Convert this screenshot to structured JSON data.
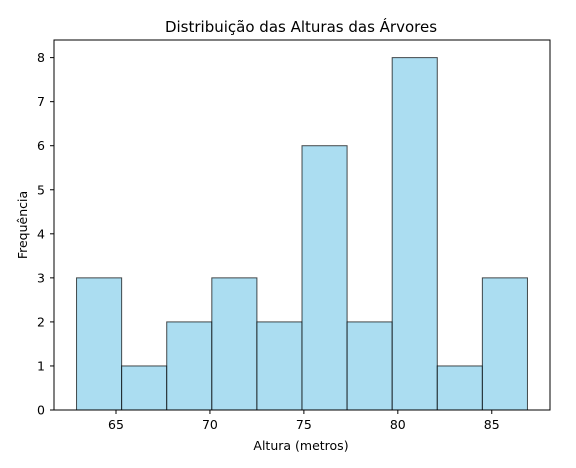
{
  "chart_data": {
    "type": "bar",
    "subtype": "histogram",
    "title": "Distribuição das Alturas das Árvores",
    "xlabel": "Altura (metros)",
    "ylabel": "Frequência",
    "bins": [
      {
        "start": 62.9,
        "end": 65.3,
        "count": 3
      },
      {
        "start": 65.3,
        "end": 67.7,
        "count": 1
      },
      {
        "start": 67.7,
        "end": 70.1,
        "count": 2
      },
      {
        "start": 70.1,
        "end": 72.5,
        "count": 3
      },
      {
        "start": 72.5,
        "end": 74.9,
        "count": 2
      },
      {
        "start": 74.9,
        "end": 77.3,
        "count": 6
      },
      {
        "start": 77.3,
        "end": 79.7,
        "count": 2
      },
      {
        "start": 79.7,
        "end": 82.1,
        "count": 8
      },
      {
        "start": 82.1,
        "end": 84.5,
        "count": 1
      },
      {
        "start": 84.5,
        "end": 86.9,
        "count": 3
      }
    ],
    "xlim": [
      61.7,
      88.1
    ],
    "ylim": [
      0,
      8.4
    ],
    "xticks": [
      65,
      70,
      75,
      80,
      85
    ],
    "yticks": [
      0,
      1,
      2,
      3,
      4,
      5,
      6,
      7,
      8
    ],
    "grid": false,
    "colors": {
      "bar_fill": "#87ceeb",
      "bar_edge": "#000000",
      "axis": "#000000"
    },
    "bar_alpha": 0.7
  }
}
